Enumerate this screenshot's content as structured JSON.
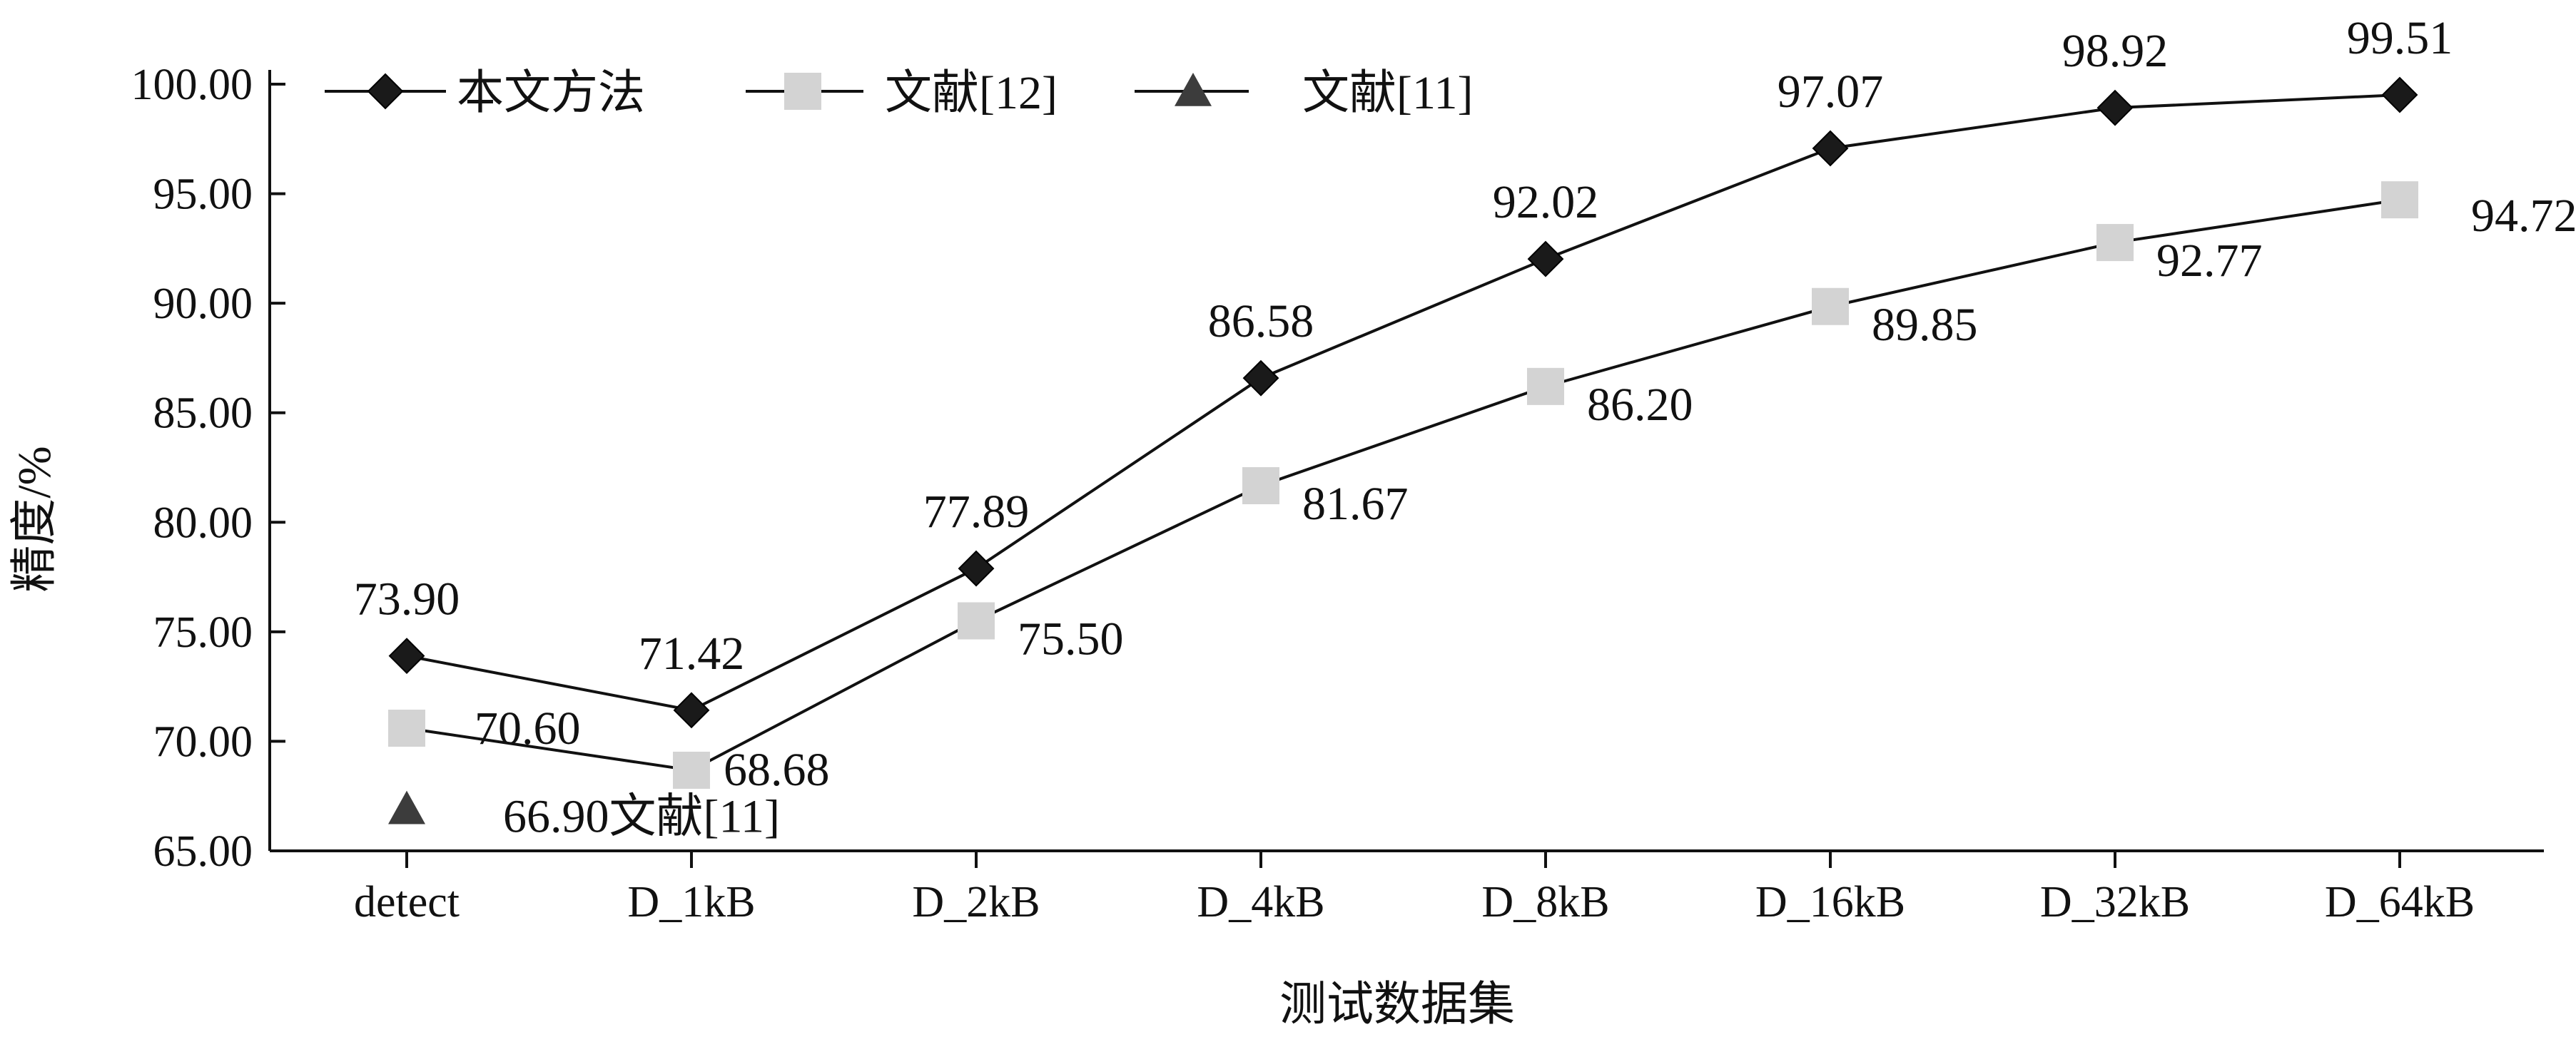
{
  "chart_data": {
    "type": "line",
    "categories": [
      "detect",
      "D_1kB",
      "D_2kB",
      "D_4kB",
      "D_8kB",
      "D_16kB",
      "D_32kB",
      "D_64kB"
    ],
    "xlabel": "测试数据集",
    "ylabel": "精度/%",
    "ylim": [
      65,
      100
    ],
    "yticks": [
      "65.00",
      "70.00",
      "75.00",
      "80.00",
      "85.00",
      "90.00",
      "95.00",
      "100.00"
    ],
    "grid": false,
    "legend_position": "top-left",
    "series": [
      {
        "name": "本文方法",
        "marker": "diamond",
        "color": "#1a1a1a",
        "values": [
          73.9,
          71.42,
          77.89,
          86.58,
          92.02,
          97.07,
          98.92,
          99.51
        ],
        "labels": [
          "73.90",
          "71.42",
          "77.89",
          "86.58",
          "92.02",
          "97.07",
          "98.92",
          "99.51"
        ]
      },
      {
        "name": "文献[12]",
        "marker": "square",
        "color": "#d3d3d3",
        "values": [
          70.6,
          68.68,
          75.5,
          81.67,
          86.2,
          89.85,
          92.77,
          94.72
        ],
        "labels": [
          "70.60",
          "68.68",
          "75.50",
          "81.67",
          "86.20",
          "89.85",
          "92.77",
          "94.72"
        ]
      },
      {
        "name": "文献[11]",
        "marker": "triangle",
        "color": "#3c3c3c",
        "values": [
          66.9,
          null,
          null,
          null,
          null,
          null,
          null,
          null
        ],
        "labels": [
          "66.90文献[11]",
          null,
          null,
          null,
          null,
          null,
          null,
          null
        ]
      }
    ]
  }
}
